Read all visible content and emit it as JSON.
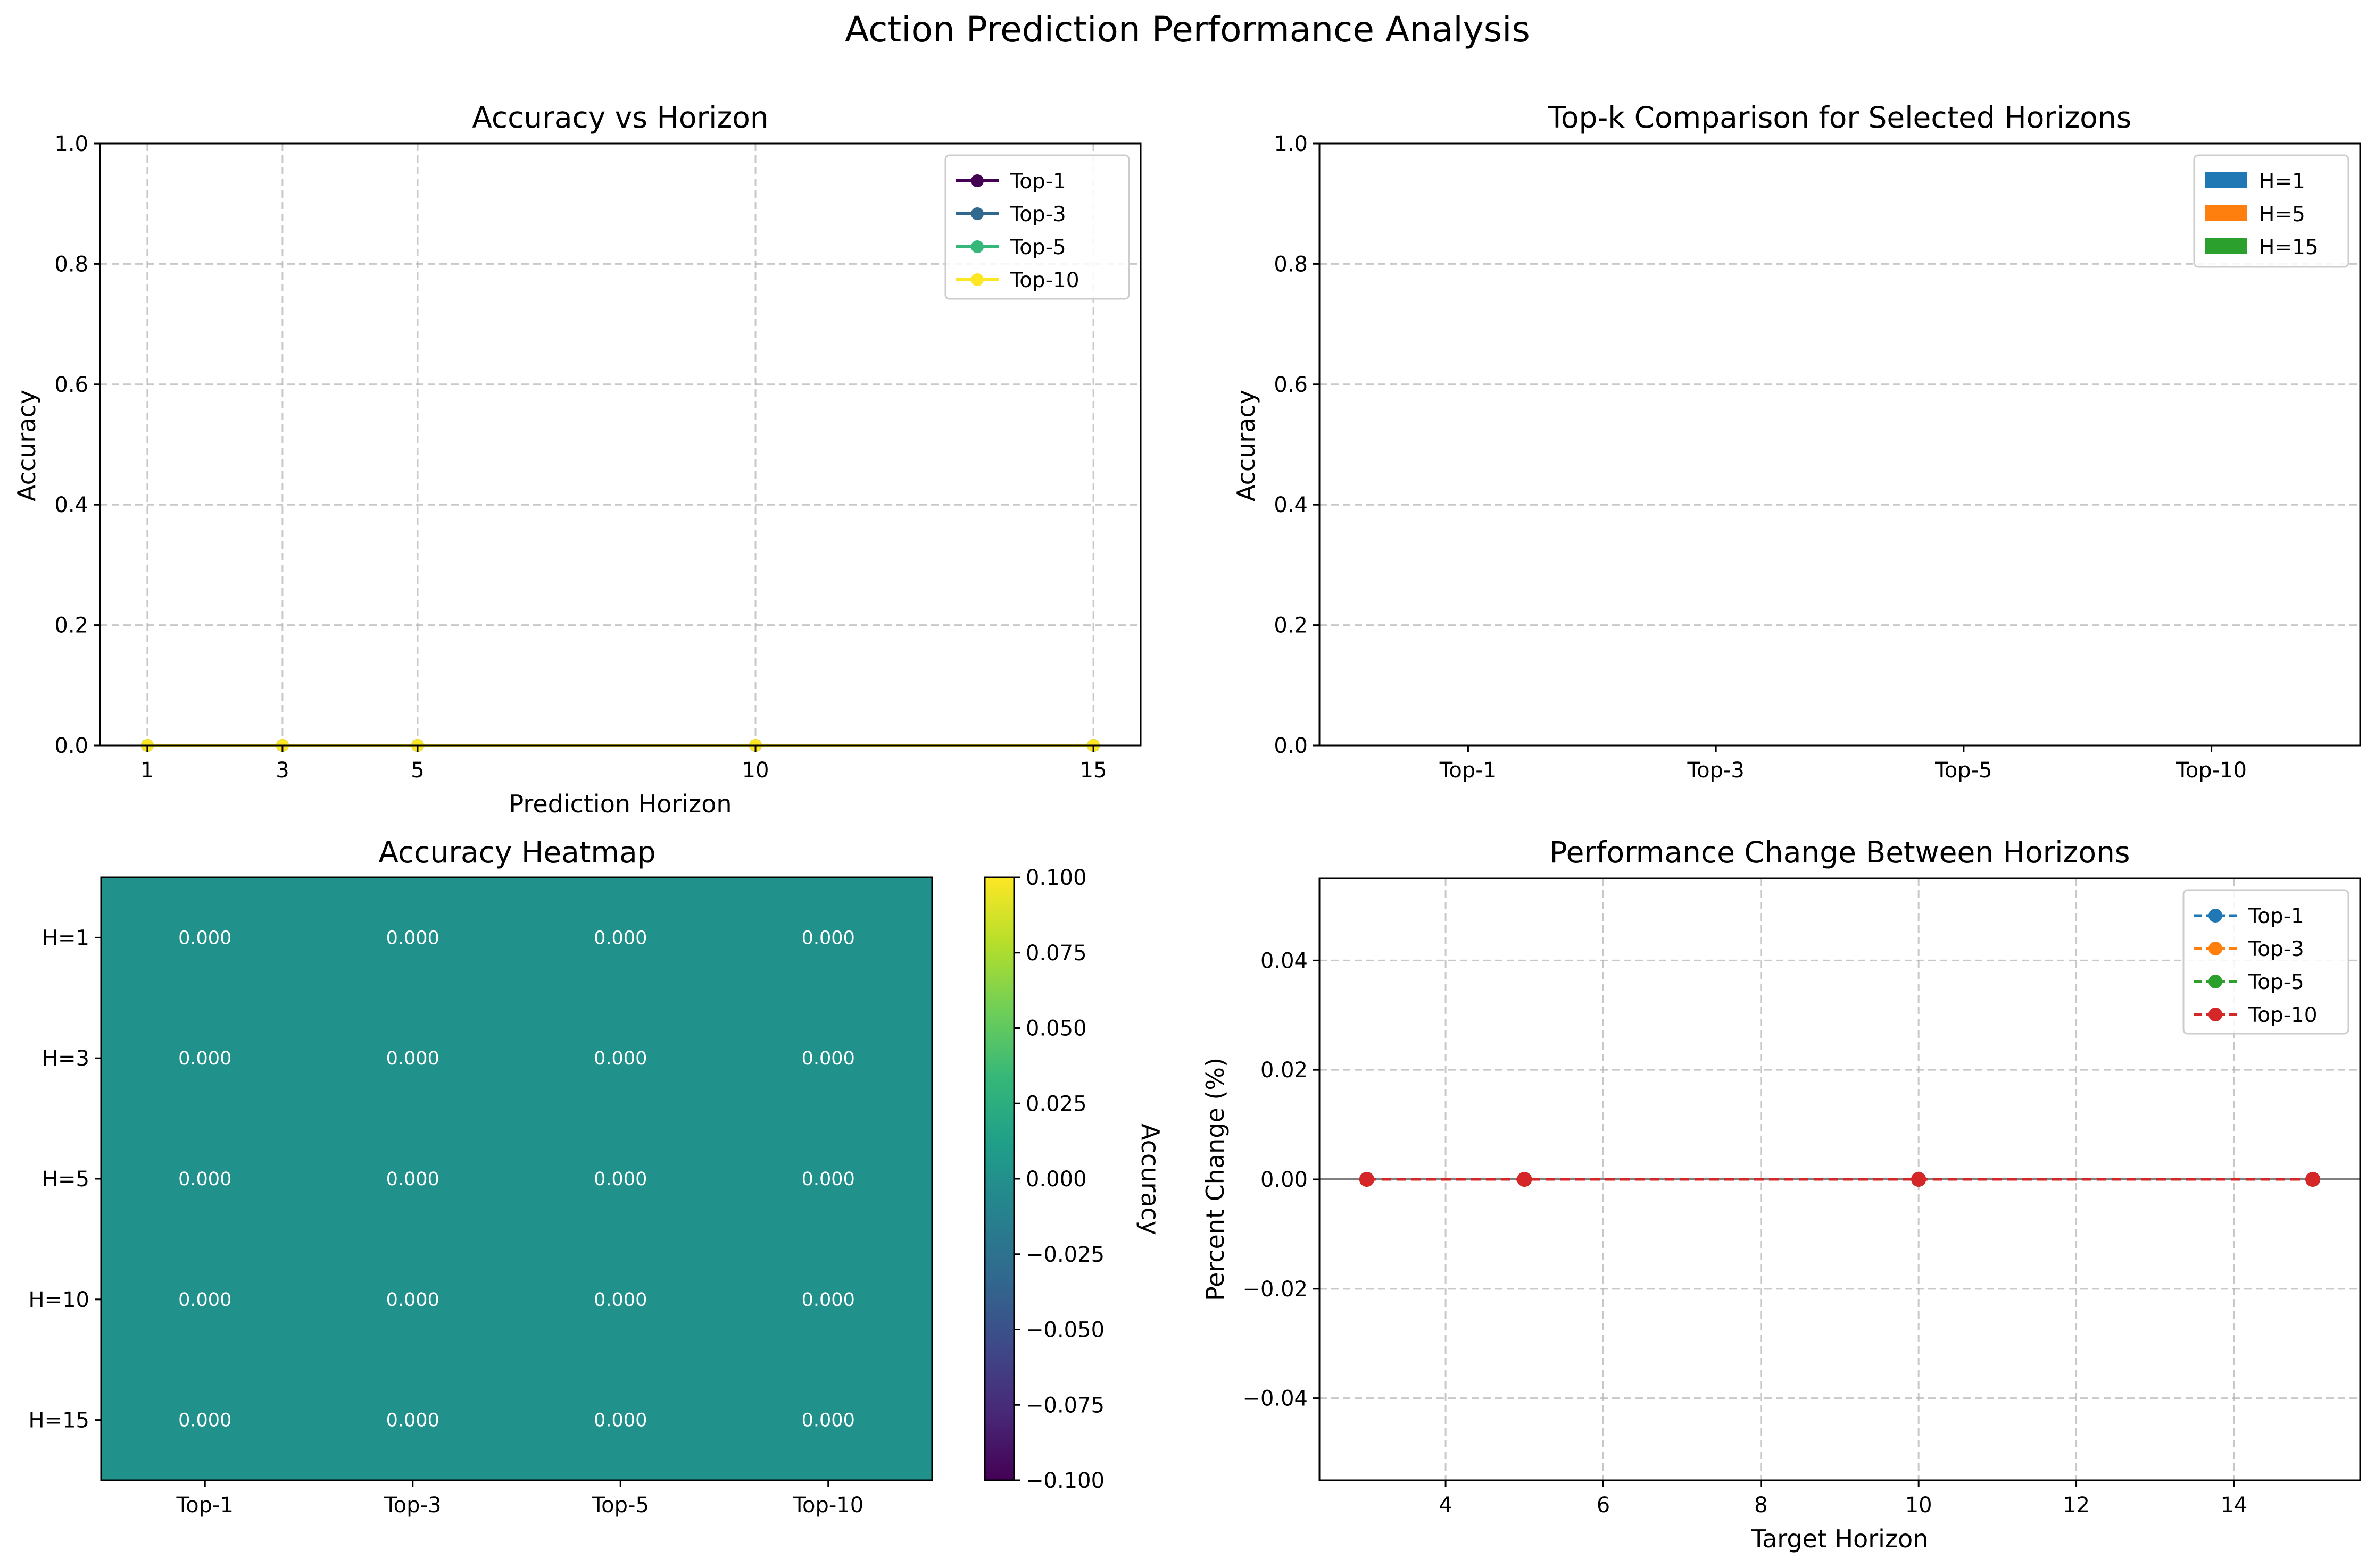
{
  "suptitle": "Action Prediction Performance Analysis",
  "colors": {
    "viridis": [
      "#440154",
      "#31688e",
      "#35b779",
      "#fde725"
    ],
    "tab": [
      "#1f77b4",
      "#ff7f0e",
      "#2ca02c",
      "#d62728"
    ],
    "heat_cell": "#21918c",
    "zero_line": "#808080",
    "grid": "#b0b0b0"
  },
  "chart_data": [
    {
      "id": "accuracy-vs-horizon",
      "type": "line",
      "title": "Accuracy vs Horizon",
      "xlabel": "Prediction Horizon",
      "ylabel": "Accuracy",
      "x": [
        1,
        3,
        5,
        10,
        15
      ],
      "xlim": [
        0.3,
        15.7
      ],
      "ylim": [
        0,
        1
      ],
      "yticks": [
        "0.0",
        "0.2",
        "0.4",
        "0.6",
        "0.8",
        "1.0"
      ],
      "grid": true,
      "legend": "top-right",
      "series": [
        {
          "name": "Top-1",
          "values": [
            0,
            0,
            0,
            0,
            0
          ]
        },
        {
          "name": "Top-3",
          "values": [
            0,
            0,
            0,
            0,
            0
          ]
        },
        {
          "name": "Top-5",
          "values": [
            0,
            0,
            0,
            0,
            0
          ]
        },
        {
          "name": "Top-10",
          "values": [
            0,
            0,
            0,
            0,
            0
          ]
        }
      ]
    },
    {
      "id": "topk-comparison",
      "type": "bar",
      "title": "Top-k Comparison for Selected Horizons",
      "xlabel": "",
      "ylabel": "Accuracy",
      "categories": [
        "Top-1",
        "Top-3",
        "Top-5",
        "Top-10"
      ],
      "ylim": [
        0,
        1
      ],
      "yticks": [
        "0.0",
        "0.2",
        "0.4",
        "0.6",
        "0.8",
        "1.0"
      ],
      "grid": "y",
      "legend": "top-right",
      "series": [
        {
          "name": "H=1",
          "values": [
            0,
            0,
            0,
            0
          ]
        },
        {
          "name": "H=5",
          "values": [
            0,
            0,
            0,
            0
          ]
        },
        {
          "name": "H=15",
          "values": [
            0,
            0,
            0,
            0
          ]
        }
      ]
    },
    {
      "id": "accuracy-heatmap",
      "type": "heatmap",
      "title": "Accuracy Heatmap",
      "columns": [
        "Top-1",
        "Top-3",
        "Top-5",
        "Top-10"
      ],
      "rows": [
        "H=1",
        "H=3",
        "H=5",
        "H=10",
        "H=15"
      ],
      "values": [
        [
          0,
          0,
          0,
          0
        ],
        [
          0,
          0,
          0,
          0
        ],
        [
          0,
          0,
          0,
          0
        ],
        [
          0,
          0,
          0,
          0
        ],
        [
          0,
          0,
          0,
          0
        ]
      ],
      "cell_labels": [
        [
          "0.000",
          "0.000",
          "0.000",
          "0.000"
        ],
        [
          "0.000",
          "0.000",
          "0.000",
          "0.000"
        ],
        [
          "0.000",
          "0.000",
          "0.000",
          "0.000"
        ],
        [
          "0.000",
          "0.000",
          "0.000",
          "0.000"
        ],
        [
          "0.000",
          "0.000",
          "0.000",
          "0.000"
        ]
      ],
      "colorbar": {
        "label": "Accuracy",
        "range": [
          -0.1,
          0.1
        ],
        "ticks": [
          0.1,
          0.075,
          0.05,
          0.025,
          0.0,
          -0.025,
          -0.05,
          -0.075,
          -0.1
        ],
        "tick_labels": [
          "0.100",
          "0.075",
          "0.050",
          "0.025",
          "0.000",
          "−0.025",
          "−0.050",
          "−0.075",
          "−0.100"
        ]
      }
    },
    {
      "id": "performance-change",
      "type": "line",
      "title": "Performance Change Between Horizons",
      "xlabel": "Target Horizon",
      "ylabel": "Percent Change (%)",
      "x": [
        3,
        5,
        10,
        15
      ],
      "xlim": [
        2.4,
        15.6
      ],
      "xticks": [
        4,
        6,
        8,
        10,
        12,
        14
      ],
      "ylim": [
        -0.055,
        0.055
      ],
      "yticks": [
        0.04,
        0.02,
        0.0,
        -0.02,
        -0.04
      ],
      "ytick_labels": [
        "0.04",
        "0.02",
        "0.00",
        "−0.02",
        "−0.04"
      ],
      "grid": true,
      "legend": "top-right",
      "series": [
        {
          "name": "Top-1",
          "values": [
            0,
            0,
            0,
            0
          ]
        },
        {
          "name": "Top-3",
          "values": [
            0,
            0,
            0,
            0
          ]
        },
        {
          "name": "Top-5",
          "values": [
            0,
            0,
            0,
            0
          ]
        },
        {
          "name": "Top-10",
          "values": [
            0,
            0,
            0,
            0
          ]
        }
      ]
    }
  ]
}
